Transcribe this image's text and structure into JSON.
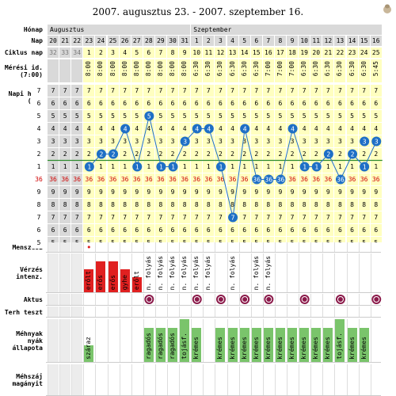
{
  "title": "2007. augusztus 23. - 2007. szeptember 16.",
  "labels": {
    "honap": "Hónap",
    "nap": "Nap",
    "ciklus": "Ciklus nap",
    "meresi": "Mérési id.\n(7:00)",
    "napi": "Napi höm.\n(C°)",
    "menszesz": "Menszesz",
    "verzes": "Vérzés\nintenz.",
    "aktus": "Aktus",
    "terh": "Terh teszt",
    "mehnyak": "Méhnyak\nnyák\nállapota",
    "mehszaj": "Méhszáj\nmagányit"
  },
  "months": [
    "Augusztus",
    "Szeptember"
  ],
  "days": [
    "20",
    "21",
    "22",
    "23",
    "24",
    "25",
    "26",
    "27",
    "28",
    "29",
    "30",
    "31",
    "1",
    "2",
    "3",
    "4",
    "5",
    "6",
    "7",
    "8",
    "9",
    "10",
    "11",
    "12",
    "13",
    "14",
    "15",
    "16"
  ],
  "cycle_days": [
    "32",
    "33",
    "34",
    "1",
    "2",
    "3",
    "4",
    "5",
    "6",
    "7",
    "8",
    "9",
    "10",
    "11",
    "12",
    "13",
    "14",
    "15",
    "16",
    "17",
    "18",
    "19",
    "20",
    "21",
    "22",
    "23",
    "24",
    "25"
  ],
  "times": [
    "",
    "",
    "",
    "8:00",
    "8:00",
    "8:00",
    "8:00",
    "8:00",
    "8:00",
    "8:00",
    "8:00",
    "8:00",
    "6:30",
    "6:30",
    "6:30",
    "6:30",
    "6:30",
    "6:30",
    "7:00",
    "7:00",
    "7:00",
    "6:30",
    "6:30",
    "6:30",
    "6:30",
    "6:30",
    "6:30",
    "5:45"
  ],
  "temp_rows": [
    {
      "label": "7",
      "val": 7
    },
    {
      "label": "6",
      "val": 6
    },
    {
      "label": "5",
      "val": 5
    },
    {
      "label": "4",
      "val": 4
    },
    {
      "label": "3",
      "val": 3
    },
    {
      "label": "2",
      "val": 2
    },
    {
      "label": "1",
      "val": 1
    },
    {
      "label": "36",
      "val": 0
    },
    {
      "label": "9",
      "val": -1
    },
    {
      "label": "8",
      "val": -2
    },
    {
      "label": "7",
      "val": -3
    },
    {
      "label": "6",
      "val": -4
    },
    {
      "label": "5",
      "val": -5
    }
  ],
  "temp_values": [
    null,
    null,
    null,
    1,
    2,
    2,
    4,
    1,
    5,
    1,
    1,
    3,
    4,
    4,
    1,
    -3,
    4,
    0,
    0,
    0,
    4,
    1,
    1,
    2,
    0,
    2,
    1,
    3
  ],
  "temp_values_extra": [
    {
      "day_index": 27,
      "value": 3
    }
  ],
  "coverline": 2,
  "menstruation": [
    {
      "day_index": 3,
      "label": "•"
    }
  ],
  "bleeding": [
    {
      "day_index": 3,
      "label": "erőlt",
      "level": 3
    },
    {
      "day_index": 4,
      "label": "erős",
      "level": 4
    },
    {
      "day_index": 5,
      "label": "erős",
      "level": 4
    },
    {
      "day_index": 6,
      "label": "gyhe",
      "level": 3
    },
    {
      "day_index": 7,
      "label": "erőlt",
      "level": 2
    },
    {
      "day_index": 8,
      "label": "n. folyás",
      "level": 0
    },
    {
      "day_index": 9,
      "label": "n. folyás",
      "level": 0
    },
    {
      "day_index": 10,
      "label": "n. folyás",
      "level": 0
    },
    {
      "day_index": 11,
      "label": "n. folyás",
      "level": 0
    },
    {
      "day_index": 12,
      "label": "n. folyás",
      "level": 0
    },
    {
      "day_index": 13,
      "label": "n. folyás",
      "level": 0
    },
    {
      "day_index": 15,
      "label": "n. folyás",
      "level": 0
    },
    {
      "day_index": 17,
      "label": "n. folyás",
      "level": 0
    },
    {
      "day_index": 18,
      "label": "n. folyás",
      "level": 0
    }
  ],
  "intercourse": [
    8,
    12,
    14,
    16,
    18,
    21,
    24,
    27
  ],
  "mucus": [
    {
      "day_index": 3,
      "label": "száraz",
      "level": 2
    },
    {
      "day_index": 8,
      "label": "ragadós",
      "level": 4
    },
    {
      "day_index": 9,
      "label": "ragadós",
      "level": 4
    },
    {
      "day_index": 10,
      "label": "ragadós",
      "level": 4
    },
    {
      "day_index": 11,
      "label": "tojásf.",
      "level": 5
    },
    {
      "day_index": 12,
      "label": "krémes",
      "level": 4
    },
    {
      "day_index": 14,
      "label": "krémes",
      "level": 4
    },
    {
      "day_index": 15,
      "label": "krémes",
      "level": 4
    },
    {
      "day_index": 16,
      "label": "krémes",
      "level": 4
    },
    {
      "day_index": 17,
      "label": "krémes",
      "level": 4
    },
    {
      "day_index": 18,
      "label": "krémes",
      "level": 4
    },
    {
      "day_index": 19,
      "label": "krémes",
      "level": 4
    },
    {
      "day_index": 20,
      "label": "krémes",
      "level": 4
    },
    {
      "day_index": 21,
      "label": "krémes",
      "level": 4
    },
    {
      "day_index": 22,
      "label": "krémes",
      "level": 4
    },
    {
      "day_index": 23,
      "label": "krémes",
      "level": 4
    },
    {
      "day_index": 24,
      "label": "tojásf.",
      "level": 5
    },
    {
      "day_index": 25,
      "label": "krémes",
      "level": 4
    },
    {
      "day_index": 26,
      "label": "krémes",
      "level": 4
    }
  ],
  "colors": {
    "point": "#1e6fc6",
    "coverline": "#2e8b2e",
    "bleed": "#e02020",
    "mucus": "#7ac46b",
    "aktus": "#8b1a4a",
    "high": "#d00000"
  },
  "icons": {
    "corner": "beehive-icon",
    "aktus": "heart-badge-icon"
  }
}
